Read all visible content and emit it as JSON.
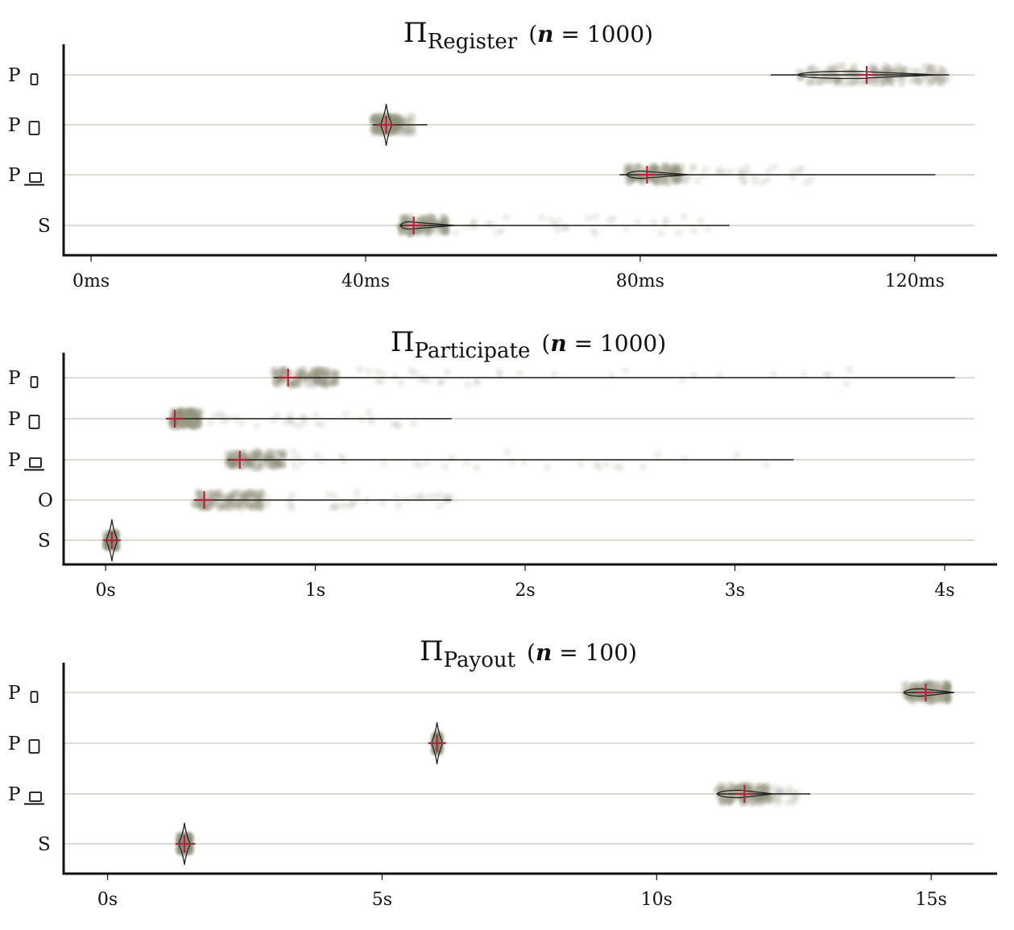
{
  "colors": {
    "dots": "#8c8e78",
    "median": "#b0253e",
    "line": "#222222",
    "grid": "#cfcfc4",
    "axis": "#111111"
  },
  "chart_data": [
    {
      "type": "scatter",
      "title": {
        "symbol": "Π",
        "subscript": "Register",
        "n_label": "n",
        "n_value": "1000"
      },
      "xlim": [
        -4,
        132
      ],
      "ticks": [
        {
          "value": 0,
          "label": "0ms"
        },
        {
          "value": 40,
          "label": "40ms"
        },
        {
          "value": 80,
          "label": "80ms"
        },
        {
          "value": 120,
          "label": "120ms"
        }
      ],
      "rows": [
        {
          "label": "P",
          "icon": "phone-icon",
          "min": 99,
          "median": 113,
          "max": 125,
          "cluster": [
            103,
            122
          ],
          "tail_end": 125,
          "violin": 1
        },
        {
          "label": "P",
          "icon": "tablet-icon",
          "min": 41,
          "median": 43,
          "max": 49,
          "cluster": [
            41,
            45
          ],
          "tail_end": 47,
          "violin": 2
        },
        {
          "label": "P",
          "icon": "laptop-icon",
          "min": 77,
          "median": 81,
          "max": 123,
          "cluster": [
            78,
            86
          ],
          "tail_end": 105,
          "violin": 1
        },
        {
          "label": "S",
          "icon": "",
          "min": 45,
          "median": 47,
          "max": 93,
          "cluster": [
            45,
            52
          ],
          "tail_end": 93,
          "violin": 1
        }
      ]
    },
    {
      "type": "scatter",
      "title": {
        "symbol": "Π",
        "subscript": "Participate",
        "n_label": "n",
        "n_value": "1000"
      },
      "xlim": [
        -0.2,
        4.25
      ],
      "ticks": [
        {
          "value": 0,
          "label": "0s"
        },
        {
          "value": 1,
          "label": "1s"
        },
        {
          "value": 2,
          "label": "2s"
        },
        {
          "value": 3,
          "label": "3s"
        },
        {
          "value": 4,
          "label": "4s"
        }
      ],
      "rows": [
        {
          "label": "P",
          "icon": "phone-icon",
          "min": 0.8,
          "median": 0.87,
          "max": 4.05,
          "cluster": [
            0.8,
            1.1
          ],
          "tail_end": 3.6,
          "violin": 0
        },
        {
          "label": "P",
          "icon": "tablet-icon",
          "min": 0.31,
          "median": 0.33,
          "max": 1.65,
          "cluster": [
            0.31,
            0.45
          ],
          "tail_end": 1.5,
          "violin": 0
        },
        {
          "label": "P",
          "icon": "laptop-icon",
          "min": 0.58,
          "median": 0.64,
          "max": 3.28,
          "cluster": [
            0.58,
            0.85
          ],
          "tail_end": 3.2,
          "violin": 0
        },
        {
          "label": "O",
          "icon": "",
          "min": 0.42,
          "median": 0.47,
          "max": 1.65,
          "cluster": [
            0.42,
            0.75
          ],
          "tail_end": 1.65,
          "violin": 0
        },
        {
          "label": "S",
          "icon": "",
          "min": 0.0,
          "median": 0.03,
          "max": 0.06,
          "cluster": [
            0.0,
            0.05
          ],
          "tail_end": 0.05,
          "violin": 2
        }
      ]
    },
    {
      "type": "scatter",
      "title": {
        "symbol": "Π",
        "subscript": "Payout",
        "n_label": "n",
        "n_value": "100"
      },
      "xlim": [
        -0.8,
        16.2
      ],
      "ticks": [
        {
          "value": 0,
          "label": "0s"
        },
        {
          "value": 5,
          "label": "5s"
        },
        {
          "value": 10,
          "label": "10s"
        },
        {
          "value": 15,
          "label": "15s"
        }
      ],
      "rows": [
        {
          "label": "P",
          "icon": "phone-icon",
          "min": 14.5,
          "median": 14.9,
          "max": 15.4,
          "cluster": [
            14.5,
            15.3
          ],
          "tail_end": 15.3,
          "violin": 1
        },
        {
          "label": "P",
          "icon": "tablet-icon",
          "min": 5.95,
          "median": 6.0,
          "max": 6.05,
          "cluster": [
            5.95,
            6.05
          ],
          "tail_end": 6.05,
          "violin": 2
        },
        {
          "label": "P",
          "icon": "laptop-icon",
          "min": 11.1,
          "median": 11.6,
          "max": 12.8,
          "cluster": [
            11.1,
            12.0
          ],
          "tail_end": 12.6,
          "violin": 1
        },
        {
          "label": "S",
          "icon": "",
          "min": 1.3,
          "median": 1.4,
          "max": 1.6,
          "cluster": [
            1.3,
            1.5
          ],
          "tail_end": 1.5,
          "violin": 2
        }
      ]
    }
  ]
}
